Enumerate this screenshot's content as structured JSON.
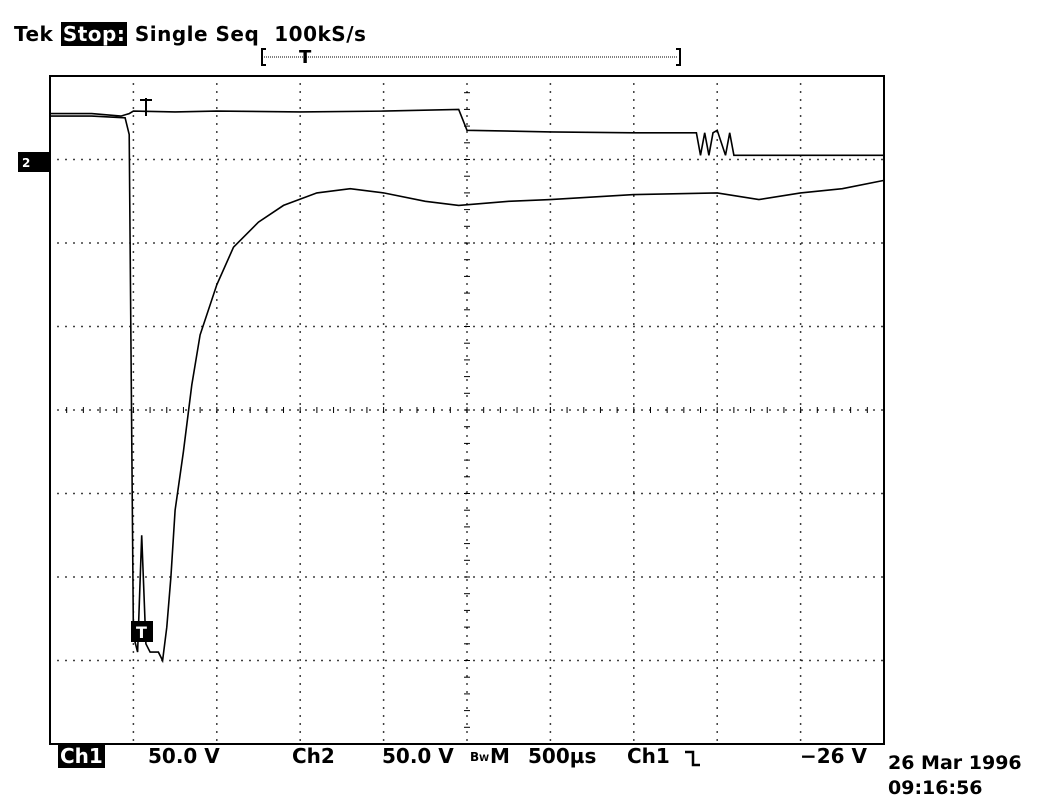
{
  "header": {
    "brand": "Tek",
    "state": "Stop:",
    "mode": "Single Seq",
    "sample_rate": "100kS/s"
  },
  "footer": {
    "ch1_label": "Ch1",
    "ch1_scale": "50.0 V",
    "ch2_label": "Ch2",
    "ch2_scale": "50.0 V",
    "bw_symbol": "B",
    "bw_sub": "W",
    "timebase_label": "M",
    "timebase": "500µs",
    "trigger_source": "Ch1",
    "trigger_slope_icon": "falling-edge-icon",
    "trigger_level": "−26 V"
  },
  "datetime": {
    "date": "26 Mar 1996",
    "time": "09:16:56"
  },
  "markers": {
    "channel_marker": "2",
    "trigger_marker": "T",
    "trigger_position": "T"
  },
  "chart_data": {
    "type": "line",
    "xlim": [
      0,
      10
    ],
    "ylim": [
      -4,
      4
    ],
    "x_divisions": 10,
    "y_divisions": 8,
    "grid": true,
    "series": [
      {
        "points": [
          [
            0,
            3.55
          ],
          [
            0.5,
            3.55
          ],
          [
            0.85,
            3.52
          ],
          [
            0.95,
            3.55
          ],
          [
            1.0,
            3.58
          ],
          [
            1.5,
            3.57
          ],
          [
            2.0,
            3.58
          ],
          [
            3.0,
            3.57
          ],
          [
            4.0,
            3.58
          ],
          [
            4.9,
            3.6
          ],
          [
            5.0,
            3.35
          ],
          [
            6.0,
            3.33
          ],
          [
            7.0,
            3.32
          ],
          [
            7.75,
            3.32
          ],
          [
            7.8,
            3.05
          ],
          [
            7.85,
            3.32
          ],
          [
            7.9,
            3.05
          ],
          [
            7.95,
            3.32
          ],
          [
            8.0,
            3.35
          ],
          [
            8.1,
            3.05
          ],
          [
            8.15,
            3.32
          ],
          [
            8.2,
            3.05
          ],
          [
            8.3,
            3.05
          ],
          [
            9.0,
            3.05
          ],
          [
            10.0,
            3.05
          ]
        ]
      },
      {
        "points": [
          [
            0,
            3.52
          ],
          [
            0.5,
            3.52
          ],
          [
            0.9,
            3.5
          ],
          [
            0.95,
            3.3
          ],
          [
            1.0,
            -2.7
          ],
          [
            1.05,
            -2.9
          ],
          [
            1.1,
            -1.5
          ],
          [
            1.15,
            -2.8
          ],
          [
            1.2,
            -2.9
          ],
          [
            1.3,
            -2.9
          ],
          [
            1.35,
            -3.0
          ],
          [
            1.4,
            -2.6
          ],
          [
            1.45,
            -2.0
          ],
          [
            1.5,
            -1.2
          ],
          [
            1.6,
            -0.5
          ],
          [
            1.7,
            0.3
          ],
          [
            1.8,
            0.9
          ],
          [
            2.0,
            1.5
          ],
          [
            2.2,
            1.95
          ],
          [
            2.5,
            2.25
          ],
          [
            2.8,
            2.45
          ],
          [
            3.2,
            2.6
          ],
          [
            3.6,
            2.65
          ],
          [
            4.0,
            2.6
          ],
          [
            4.5,
            2.5
          ],
          [
            4.9,
            2.45
          ],
          [
            5.5,
            2.5
          ],
          [
            6.0,
            2.52
          ],
          [
            7.0,
            2.58
          ],
          [
            8.0,
            2.6
          ],
          [
            8.5,
            2.52
          ],
          [
            9.0,
            2.6
          ],
          [
            9.5,
            2.65
          ],
          [
            10.0,
            2.75
          ]
        ]
      }
    ]
  }
}
